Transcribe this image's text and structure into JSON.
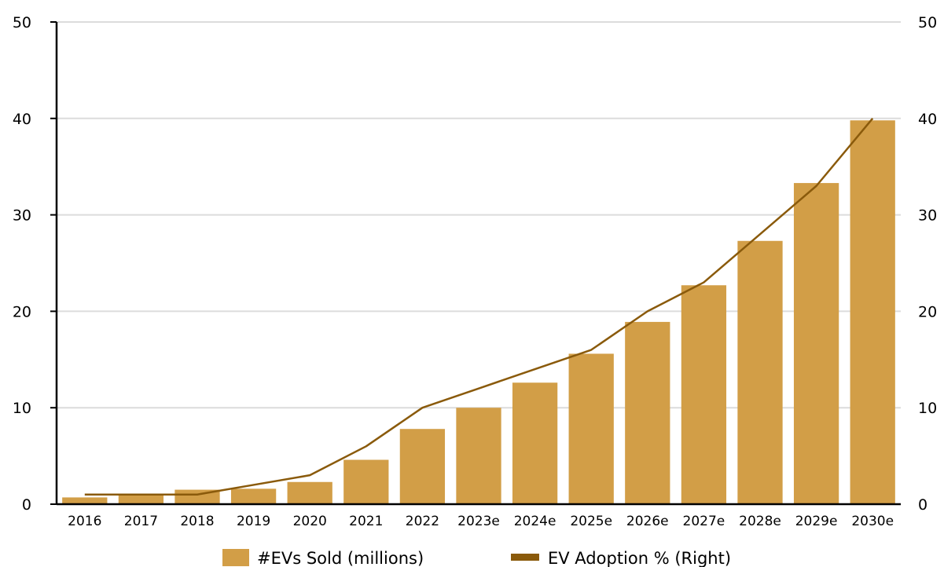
{
  "colors": {
    "bar": "#d29e47",
    "line": "#8a5a0b",
    "grid": "#dcdcdc",
    "axis": "#000000"
  },
  "chart_data": {
    "type": "bar",
    "categories": [
      "2016",
      "2017",
      "2018",
      "2019",
      "2020",
      "2021",
      "2022",
      "2023e",
      "2024e",
      "2025e",
      "2026e",
      "2027e",
      "2028e",
      "2029e",
      "2030e"
    ],
    "series": [
      {
        "name": "#EVs Sold (millions)",
        "type": "bar",
        "axis": "left",
        "values": [
          0.7,
          0.9,
          1.5,
          1.6,
          2.3,
          4.6,
          7.8,
          10.0,
          12.6,
          15.6,
          18.9,
          22.7,
          27.3,
          33.3,
          39.8
        ]
      },
      {
        "name": "EV Adoption % (Right)",
        "type": "line",
        "axis": "right",
        "values": [
          1.0,
          1.0,
          1.0,
          2.0,
          3.0,
          6.0,
          10.0,
          12.0,
          14.0,
          16.0,
          20.0,
          23.0,
          28.0,
          33.0,
          40.0
        ]
      }
    ],
    "y_left": {
      "ylim": [
        0,
        50
      ],
      "ticks": [
        "0",
        "10",
        "20",
        "30",
        "40",
        "50"
      ]
    },
    "y_right": {
      "ylim": [
        0,
        50
      ],
      "ticks": [
        "0",
        "10",
        "20",
        "30",
        "40",
        "50"
      ]
    },
    "grid": true,
    "legend": {
      "position": "bottom"
    }
  }
}
